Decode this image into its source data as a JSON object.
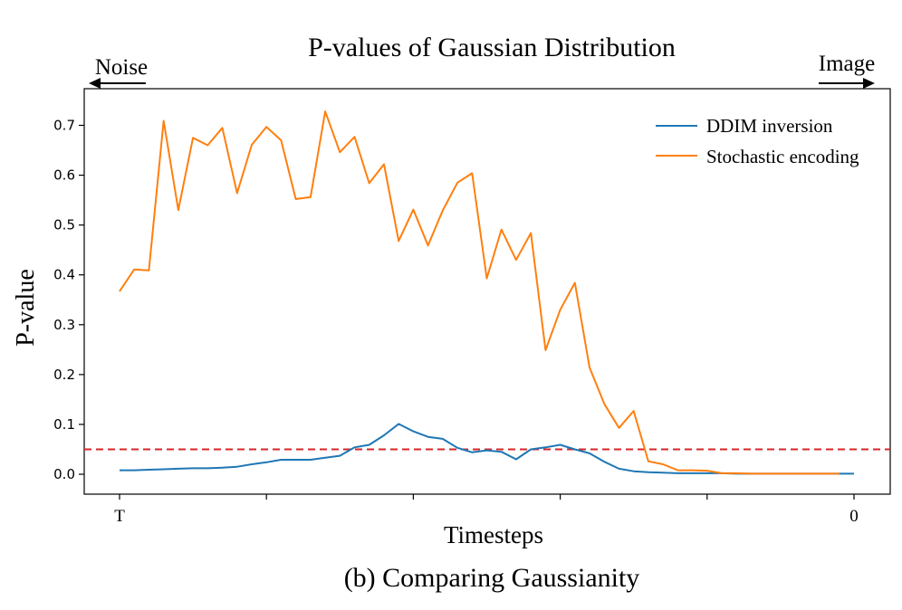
{
  "caption": "(b) Comparing Gaussianity",
  "noise_label": "Noise",
  "image_label": "Image",
  "colors": {
    "ddim": "#1f77b4",
    "stochastic": "#ff7f0e",
    "threshold": "#d62728"
  },
  "chart_data": {
    "type": "line",
    "title": "P-values of Gaussian Distribution",
    "xlabel": "Timesteps",
    "ylabel": "P-value",
    "xlim": [
      0,
      50
    ],
    "ylim": [
      -0.04,
      0.75
    ],
    "x_tick_positions": [
      0,
      10,
      20,
      30,
      40,
      50
    ],
    "x_tick_labels": [
      "T",
      "",
      "",
      "",
      "",
      "0"
    ],
    "y_ticks": [
      0.0,
      0.1,
      0.2,
      0.3,
      0.4,
      0.5,
      0.6,
      0.7
    ],
    "y_tick_labels": [
      "0.0",
      "0.1",
      "0.2",
      "0.3",
      "0.4",
      "0.5",
      "0.6",
      "0.7"
    ],
    "threshold": 0.05,
    "legend_position": "top-right",
    "series": [
      {
        "name": "DDIM inversion",
        "x": [
          0,
          1,
          2,
          3,
          4,
          5,
          6,
          7,
          8,
          9,
          10,
          11,
          12,
          13,
          14,
          15,
          16,
          17,
          18,
          19,
          20,
          21,
          22,
          23,
          24,
          25,
          26,
          27,
          28,
          29,
          30,
          31,
          32,
          33,
          34,
          35,
          36,
          37,
          38,
          39,
          40,
          41,
          42,
          43,
          44,
          45,
          46,
          47,
          48,
          49,
          50
        ],
        "values": [
          0.008,
          0.008,
          0.009,
          0.01,
          0.011,
          0.012,
          0.012,
          0.013,
          0.015,
          0.02,
          0.024,
          0.029,
          0.029,
          0.029,
          0.033,
          0.037,
          0.054,
          0.059,
          0.078,
          0.101,
          0.086,
          0.075,
          0.071,
          0.053,
          0.044,
          0.048,
          0.045,
          0.03,
          0.05,
          0.054,
          0.059,
          0.05,
          0.042,
          0.025,
          0.011,
          0.006,
          0.004,
          0.003,
          0.002,
          0.002,
          0.002,
          0.002,
          0.001,
          0.001,
          0.001,
          0.001,
          0.001,
          0.001,
          0.001,
          0.001,
          0.001
        ]
      },
      {
        "name": "Stochastic encoding",
        "x": [
          0,
          1,
          2,
          3,
          4,
          5,
          6,
          7,
          8,
          9,
          10,
          11,
          12,
          13,
          14,
          15,
          16,
          17,
          18,
          19,
          20,
          21,
          22,
          23,
          24,
          25,
          26,
          27,
          28,
          29,
          30,
          31,
          32,
          33,
          34,
          35,
          36,
          37,
          38,
          39,
          40,
          41,
          42,
          43,
          44,
          45,
          46,
          47,
          48,
          49
        ],
        "values": [
          0.367,
          0.411,
          0.409,
          0.709,
          0.53,
          0.675,
          0.66,
          0.695,
          0.564,
          0.661,
          0.697,
          0.67,
          0.552,
          0.556,
          0.728,
          0.646,
          0.677,
          0.584,
          0.622,
          0.468,
          0.531,
          0.459,
          0.529,
          0.585,
          0.604,
          0.393,
          0.491,
          0.43,
          0.484,
          0.249,
          0.33,
          0.384,
          0.214,
          0.141,
          0.093,
          0.127,
          0.026,
          0.02,
          0.008,
          0.008,
          0.007,
          0.002,
          0.002,
          0.001,
          0.001,
          0.001,
          0.001,
          0.001,
          0.001,
          0.001
        ]
      }
    ]
  }
}
